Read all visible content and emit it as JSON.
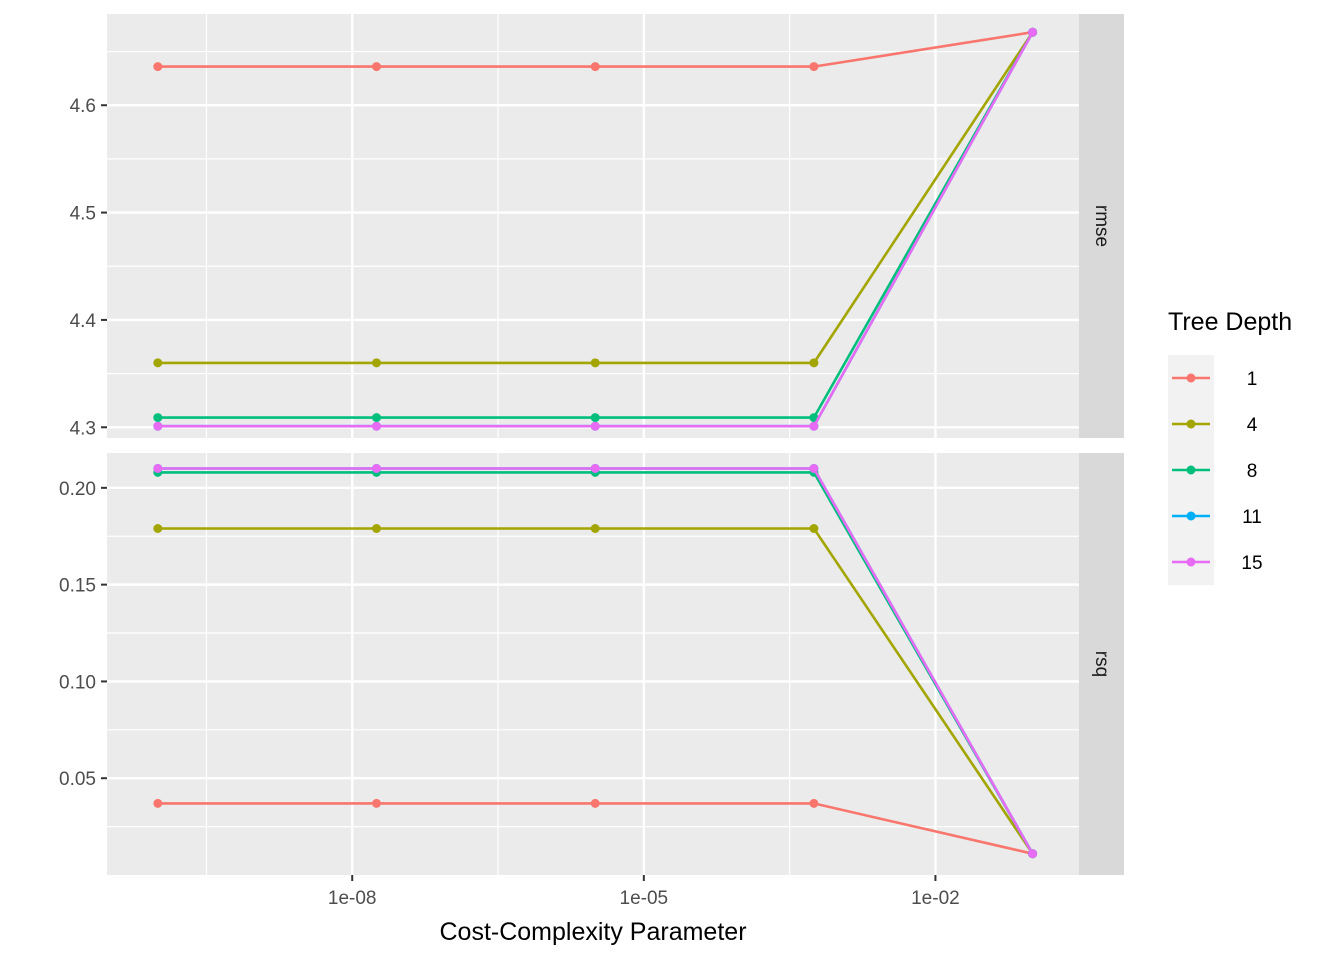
{
  "chart_data": {
    "type": "line",
    "xlabel": "Cost-Complexity Parameter",
    "x_scale": "log10",
    "x": [
      1e-10,
      1.778e-08,
      3.162e-06,
      0.0005623,
      0.1
    ],
    "x_ticks": [
      1e-08,
      1e-05,
      0.01
    ],
    "x_tick_labels": [
      "1e-08",
      "1e-05",
      "1e-02"
    ],
    "xlim": [
      3e-11,
      0.3
    ],
    "legend": {
      "title": "Tree Depth",
      "position": "right",
      "entries": [
        "1",
        "4",
        "8",
        "11",
        "15"
      ]
    },
    "facets": [
      {
        "label": "rmse",
        "ylim": [
          4.29,
          4.685
        ],
        "y_ticks": [
          4.3,
          4.4,
          4.5,
          4.6
        ],
        "y_tick_labels": [
          "4.3",
          "4.4",
          "4.5",
          "4.6"
        ],
        "series": [
          {
            "name": "1",
            "values": [
              4.636,
              4.636,
              4.636,
              4.636,
              4.668
            ]
          },
          {
            "name": "4",
            "values": [
              4.36,
              4.36,
              4.36,
              4.36,
              4.668
            ]
          },
          {
            "name": "8",
            "values": [
              4.309,
              4.309,
              4.309,
              4.309,
              4.668
            ]
          },
          {
            "name": "11",
            "values": [
              4.301,
              4.301,
              4.301,
              4.301,
              4.668
            ]
          },
          {
            "name": "15",
            "values": [
              4.301,
              4.301,
              4.301,
              4.301,
              4.668
            ]
          }
        ]
      },
      {
        "label": "rsq",
        "ylim": [
          0.0,
          0.218
        ],
        "y_ticks": [
          0.05,
          0.1,
          0.15,
          0.2
        ],
        "y_tick_labels": [
          "0.05",
          "0.10",
          "0.15",
          "0.20"
        ],
        "series": [
          {
            "name": "1",
            "values": [
              0.037,
              0.037,
              0.037,
              0.037,
              0.011
            ]
          },
          {
            "name": "4",
            "values": [
              0.179,
              0.179,
              0.179,
              0.179,
              0.011
            ]
          },
          {
            "name": "8",
            "values": [
              0.208,
              0.208,
              0.208,
              0.208,
              0.011
            ]
          },
          {
            "name": "11",
            "values": [
              0.21,
              0.21,
              0.21,
              0.21,
              0.011
            ]
          },
          {
            "name": "15",
            "values": [
              0.21,
              0.21,
              0.21,
              0.21,
              0.011
            ]
          }
        ]
      }
    ],
    "colors": {
      "1": "#F8766D",
      "4": "#A3A500",
      "8": "#00BF7D",
      "11": "#00B0F6",
      "15": "#E76BF3"
    },
    "panel_background": "#ebebeb",
    "strip_background": "#d9d9d9",
    "grid": true
  }
}
